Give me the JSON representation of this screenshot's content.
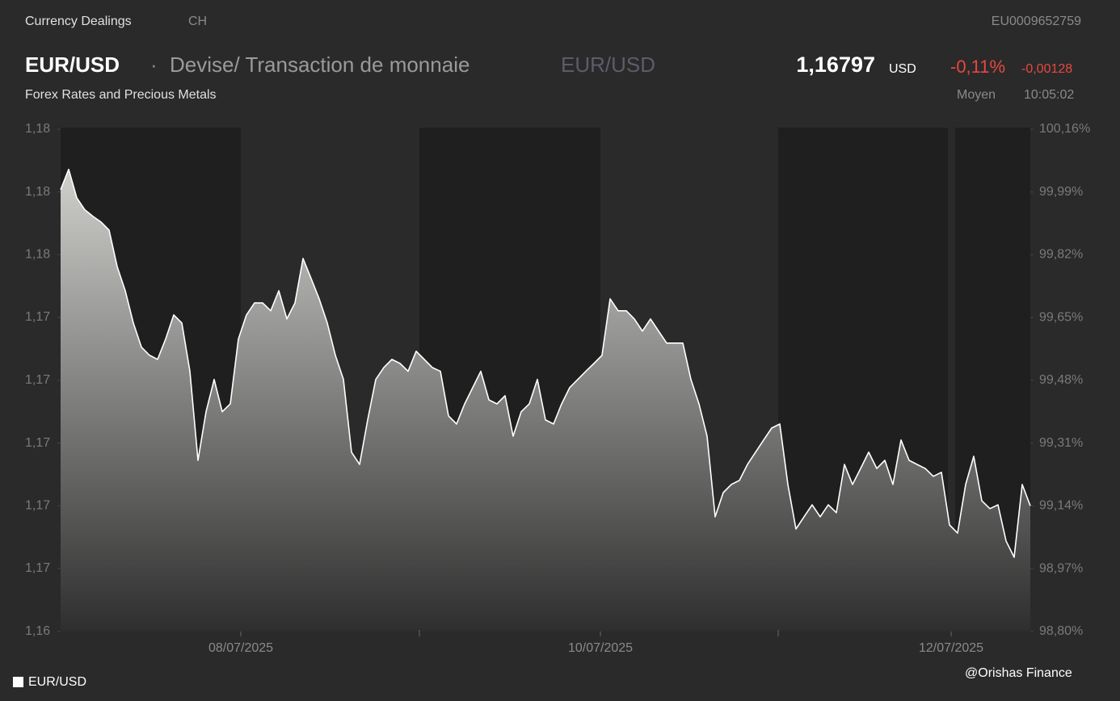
{
  "header": {
    "section": "Currency Dealings",
    "country": "CH",
    "isin": "EU0009652759",
    "symbol": "EUR/USD",
    "separator": "·",
    "description": "Devise/ Transaction de monnaie",
    "symbol_secondary": "EUR/USD",
    "price": "1,16797",
    "currency": "USD",
    "change_percent": "-0,11%",
    "change_absolute": "-0,00128",
    "subtitle": "Forex Rates and Precious Metals",
    "price_type": "Moyen",
    "time": "10:05:02"
  },
  "chart_data": {
    "type": "line",
    "series": [
      {
        "name": "EUR/USD",
        "color": "#ffffff",
        "values": [
          1.17805,
          1.1787,
          1.17779,
          1.17741,
          1.1772,
          1.17702,
          1.17676,
          1.1756,
          1.17483,
          1.1738,
          1.17303,
          1.17277,
          1.17264,
          1.17329,
          1.17406,
          1.1738,
          1.17226,
          1.16942,
          1.17097,
          1.172,
          1.17097,
          1.17122,
          1.17329,
          1.17406,
          1.17444,
          1.17444,
          1.17419,
          1.17483,
          1.17393,
          1.17444,
          1.17586,
          1.17522,
          1.17457,
          1.1738,
          1.17277,
          1.172,
          1.16968,
          1.16929,
          1.17071,
          1.172,
          1.17238,
          1.17264,
          1.17251,
          1.17226,
          1.1729,
          1.17264,
          1.17238,
          1.17226,
          1.17084,
          1.17058,
          1.17122,
          1.17174,
          1.17226,
          1.17135,
          1.17122,
          1.17148,
          1.17019,
          1.17097,
          1.17122,
          1.172,
          1.17071,
          1.17058,
          1.17122,
          1.17174,
          1.172,
          1.17226,
          1.17251,
          1.17277,
          1.17457,
          1.17419,
          1.17419,
          1.17393,
          1.17354,
          1.17393,
          1.17354,
          1.17316,
          1.17316,
          1.17316,
          1.172,
          1.17122,
          1.17019,
          1.16762,
          1.16839,
          1.16865,
          1.16878,
          1.16929,
          1.16968,
          1.17007,
          1.17045,
          1.17058,
          1.16865,
          1.16723,
          1.16762,
          1.168,
          1.16762,
          1.168,
          1.16775,
          1.16929,
          1.16865,
          1.16916,
          1.16968,
          1.16916,
          1.16942,
          1.16865,
          1.17007,
          1.16942,
          1.16929,
          1.16916,
          1.16891,
          1.16904,
          1.16736,
          1.1671,
          1.16865,
          1.16955,
          1.16813,
          1.16788,
          1.168,
          1.16685,
          1.16633,
          1.16865,
          1.16797
        ]
      }
    ],
    "xlim": [
      0,
      120
    ],
    "xticks": [
      {
        "value": 22.3,
        "label": "08/07/2025"
      },
      {
        "value": 66.8,
        "label": "10/07/2025"
      },
      {
        "value": 110.2,
        "label": "12/07/2025"
      }
    ],
    "ylim": [
      1.16396,
      1.17998
    ],
    "yticks": [
      {
        "value": 1.16396,
        "label": "1,16"
      },
      {
        "value": 1.16597,
        "label": "1,17"
      },
      {
        "value": 1.16797,
        "label": "1,17"
      },
      {
        "value": 1.16997,
        "label": "1,17"
      },
      {
        "value": 1.17197,
        "label": "1,17"
      },
      {
        "value": 1.17398,
        "label": "1,17"
      },
      {
        "value": 1.17598,
        "label": "1,18"
      },
      {
        "value": 1.17798,
        "label": "1,18"
      },
      {
        "value": 1.17998,
        "label": "1,18"
      }
    ],
    "y2lim": [
      98.8,
      100.16
    ],
    "y2ticks": [
      {
        "value": 98.8,
        "label": "98,80%"
      },
      {
        "value": 98.97,
        "label": "98,97%"
      },
      {
        "value": 99.14,
        "label": "99,14%"
      },
      {
        "value": 99.31,
        "label": "99,31%"
      },
      {
        "value": 99.48,
        "label": "99,48%"
      },
      {
        "value": 99.65,
        "label": "99,65%"
      },
      {
        "value": 99.82,
        "label": "99,82%"
      },
      {
        "value": 99.99,
        "label": "99,99%"
      },
      {
        "value": 100.16,
        "label": "100,16%"
      }
    ],
    "legend": "bottom-left",
    "footer": "@Orishas Finance"
  }
}
